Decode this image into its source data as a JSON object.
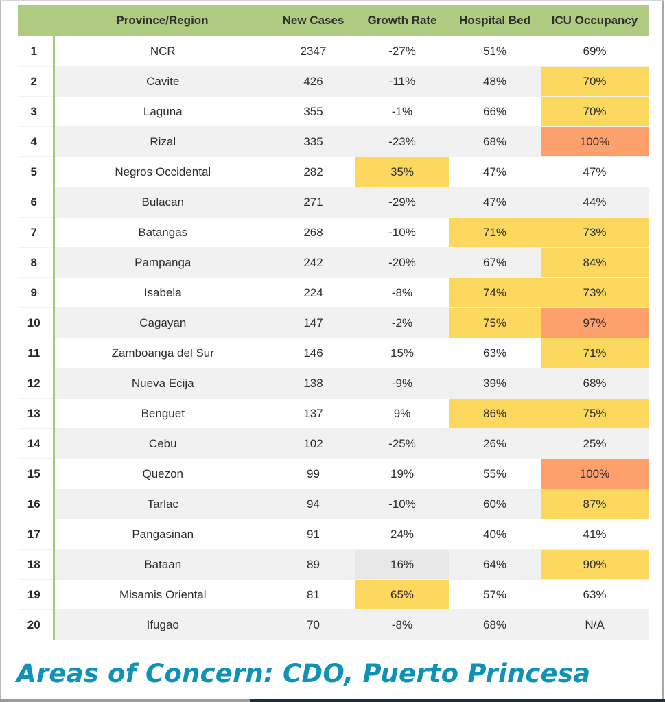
{
  "table": {
    "headers": [
      "",
      "Province/Region",
      "New Cases",
      "Growth Rate",
      "Hospital Bed",
      "ICU Occupancy"
    ],
    "highlight_colors": {
      "yellow": "#fcd95e",
      "orange": "#fea06c",
      "grey": "#e7e7e7",
      "header": "#afcb82"
    },
    "rows": [
      {
        "rank": "1",
        "province": "NCR",
        "new_cases": "2347",
        "growth_rate": "-27%",
        "hospital_bed": "51%",
        "icu": "69%",
        "hl": {}
      },
      {
        "rank": "2",
        "province": "Cavite",
        "new_cases": "426",
        "growth_rate": "-11%",
        "hospital_bed": "48%",
        "icu": "70%",
        "hl": {
          "icu": "yellow"
        }
      },
      {
        "rank": "3",
        "province": "Laguna",
        "new_cases": "355",
        "growth_rate": "-1%",
        "hospital_bed": "66%",
        "icu": "70%",
        "hl": {
          "icu": "yellow"
        }
      },
      {
        "rank": "4",
        "province": "Rizal",
        "new_cases": "335",
        "growth_rate": "-23%",
        "hospital_bed": "68%",
        "icu": "100%",
        "hl": {
          "icu": "orange"
        }
      },
      {
        "rank": "5",
        "province": "Negros Occidental",
        "new_cases": "282",
        "growth_rate": "35%",
        "hospital_bed": "47%",
        "icu": "47%",
        "hl": {
          "growth_rate": "yellow"
        }
      },
      {
        "rank": "6",
        "province": "Bulacan",
        "new_cases": "271",
        "growth_rate": "-29%",
        "hospital_bed": "47%",
        "icu": "44%",
        "hl": {}
      },
      {
        "rank": "7",
        "province": "Batangas",
        "new_cases": "268",
        "growth_rate": "-10%",
        "hospital_bed": "71%",
        "icu": "73%",
        "hl": {
          "hospital_bed": "yellow",
          "icu": "yellow"
        }
      },
      {
        "rank": "8",
        "province": "Pampanga",
        "new_cases": "242",
        "growth_rate": "-20%",
        "hospital_bed": "67%",
        "icu": "84%",
        "hl": {
          "icu": "yellow"
        }
      },
      {
        "rank": "9",
        "province": "Isabela",
        "new_cases": "224",
        "growth_rate": "-8%",
        "hospital_bed": "74%",
        "icu": "73%",
        "hl": {
          "hospital_bed": "yellow",
          "icu": "yellow"
        }
      },
      {
        "rank": "10",
        "province": "Cagayan",
        "new_cases": "147",
        "growth_rate": "-2%",
        "hospital_bed": "75%",
        "icu": "97%",
        "hl": {
          "hospital_bed": "yellow",
          "icu": "orange"
        }
      },
      {
        "rank": "11",
        "province": "Zamboanga del Sur",
        "new_cases": "146",
        "growth_rate": "15%",
        "hospital_bed": "63%",
        "icu": "71%",
        "hl": {
          "icu": "yellow"
        }
      },
      {
        "rank": "12",
        "province": "Nueva Ecija",
        "new_cases": "138",
        "growth_rate": "-9%",
        "hospital_bed": "39%",
        "icu": "68%",
        "hl": {}
      },
      {
        "rank": "13",
        "province": "Benguet",
        "new_cases": "137",
        "growth_rate": "9%",
        "hospital_bed": "86%",
        "icu": "75%",
        "hl": {
          "hospital_bed": "yellow",
          "icu": "yellow"
        }
      },
      {
        "rank": "14",
        "province": "Cebu",
        "new_cases": "102",
        "growth_rate": "-25%",
        "hospital_bed": "26%",
        "icu": "25%",
        "hl": {}
      },
      {
        "rank": "15",
        "province": "Quezon",
        "new_cases": "99",
        "growth_rate": "19%",
        "hospital_bed": "55%",
        "icu": "100%",
        "hl": {
          "icu": "orange"
        }
      },
      {
        "rank": "16",
        "province": "Tarlac",
        "new_cases": "94",
        "growth_rate": "-10%",
        "hospital_bed": "60%",
        "icu": "87%",
        "hl": {
          "icu": "yellow"
        }
      },
      {
        "rank": "17",
        "province": "Pangasinan",
        "new_cases": "91",
        "growth_rate": "24%",
        "hospital_bed": "40%",
        "icu": "41%",
        "hl": {}
      },
      {
        "rank": "18",
        "province": "Bataan",
        "new_cases": "89",
        "growth_rate": "16%",
        "hospital_bed": "64%",
        "icu": "90%",
        "hl": {
          "growth_rate": "grey",
          "icu": "yellow"
        }
      },
      {
        "rank": "19",
        "province": "Misamis Oriental",
        "new_cases": "81",
        "growth_rate": "65%",
        "hospital_bed": "57%",
        "icu": "63%",
        "hl": {
          "growth_rate": "yellow"
        }
      },
      {
        "rank": "20",
        "province": "Ifugao",
        "new_cases": "70",
        "growth_rate": "-8%",
        "hospital_bed": "68%",
        "icu": "N/A",
        "hl": {}
      }
    ]
  },
  "footer": {
    "areas_of_concern": "Areas of Concern: CDO, Puerto Princesa"
  }
}
